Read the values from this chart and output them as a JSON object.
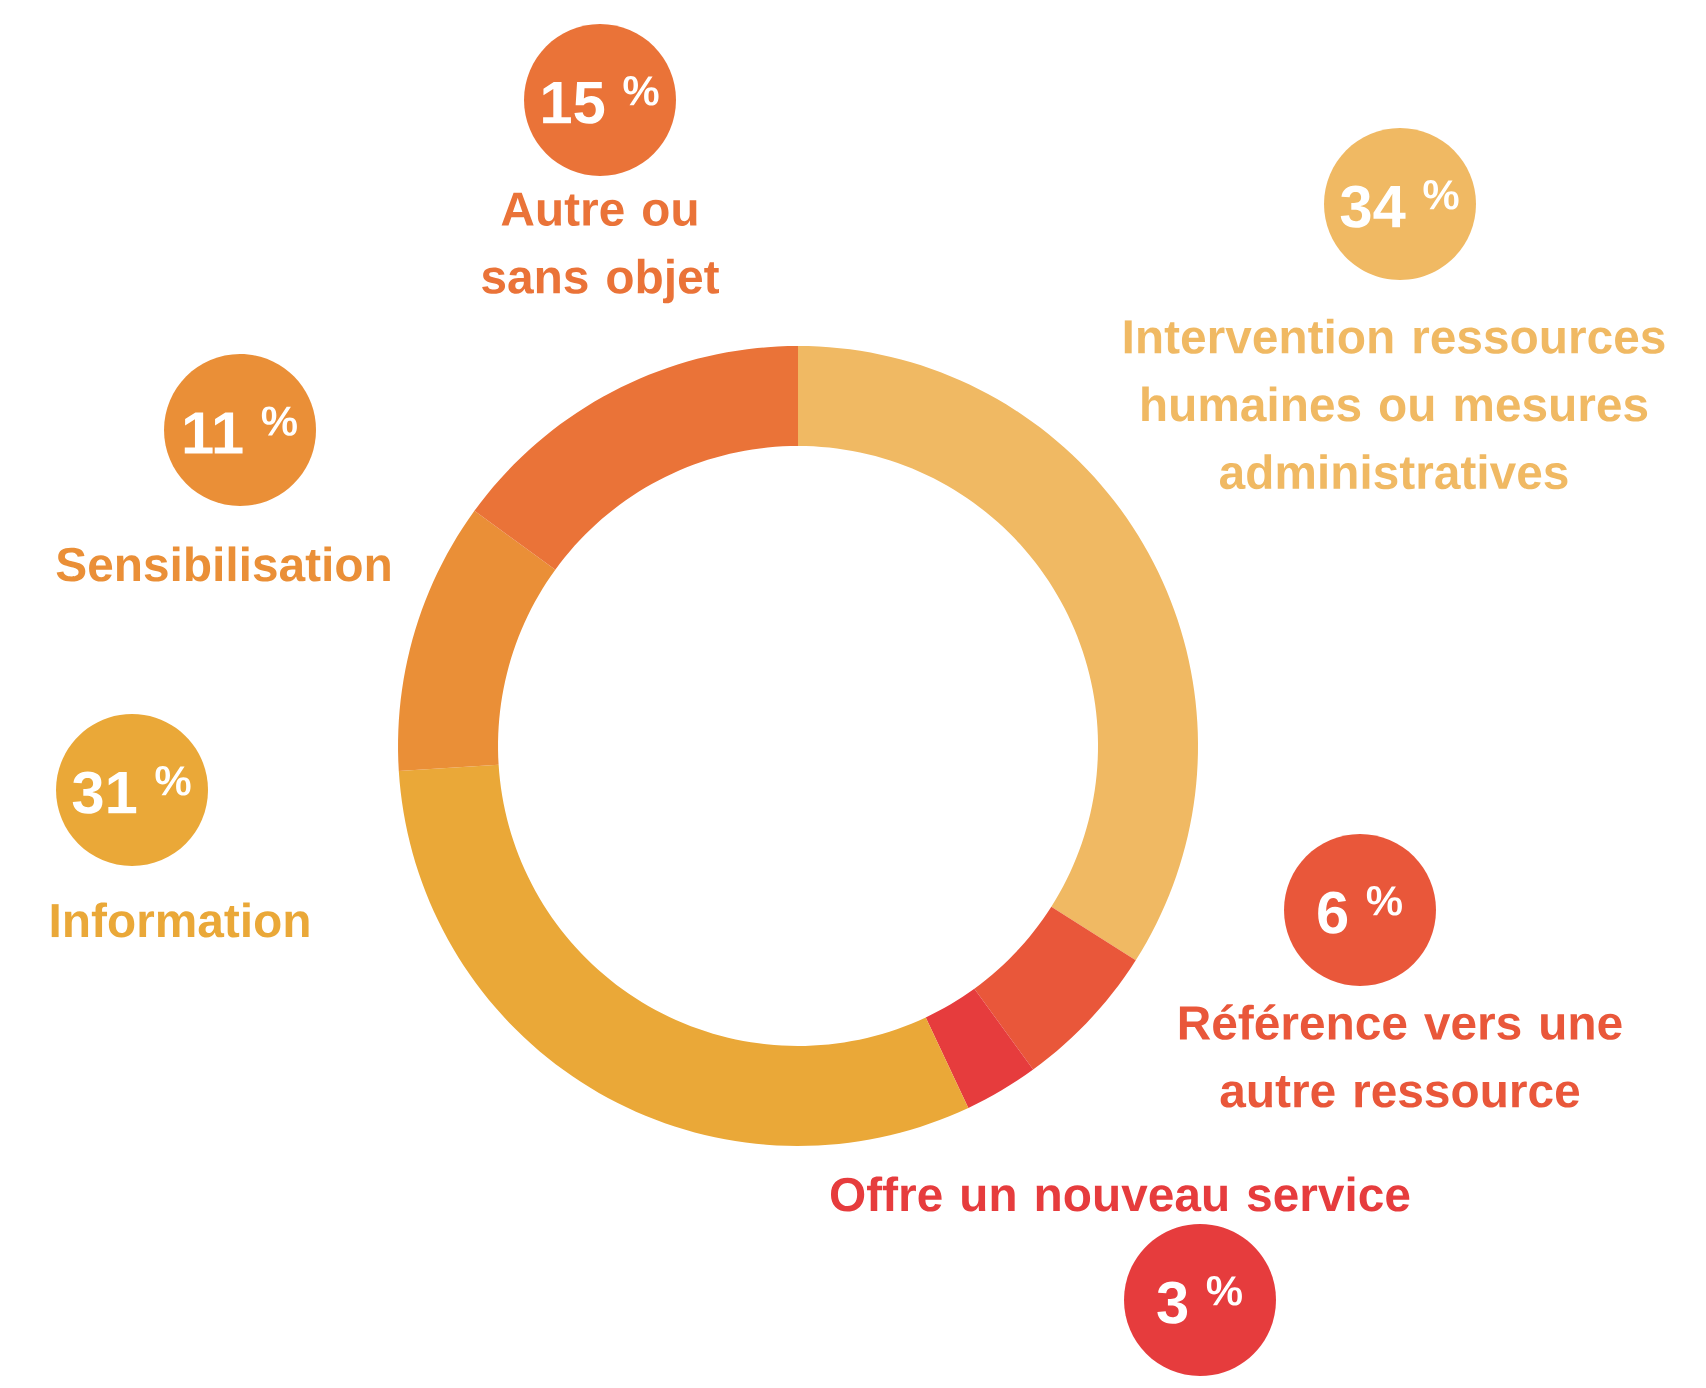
{
  "chart_data": {
    "type": "donut",
    "categories": [
      "Intervention ressources humaines ou mesures administratives",
      "Référence vers une autre ressource",
      "Offre un nouveau service",
      "Information",
      "Sensibilisation",
      "Autre ou sans objet"
    ],
    "values": [
      34,
      6,
      3,
      31,
      11,
      15
    ],
    "value_labels": [
      "34 $^{%}$",
      "6 $^{%}$",
      "3 $^{%}$",
      "31 $^{%}$",
      "11 $^{%}$",
      "15 $^{%}$"
    ],
    "colors": [
      "#f0b963",
      "#e9573a",
      "#e63c3d",
      "#eaa838",
      "#ea8f37",
      "#ea7338"
    ]
  }
}
